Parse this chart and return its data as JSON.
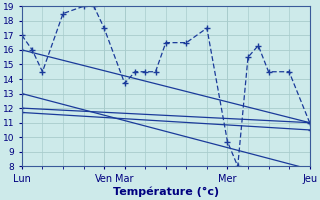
{
  "bg_color": "#cdeaea",
  "grid_color": "#a8cccc",
  "line_color": "#1a3a9a",
  "xlabel": "Température (°c)",
  "ytick_min": 8,
  "ytick_max": 19,
  "day_labels": [
    "Lun",
    "Ven",
    "Mar",
    "Mer",
    "Jeu"
  ],
  "day_x": [
    0,
    8,
    10,
    20,
    28
  ],
  "xlim": [
    0,
    28
  ],
  "series_dashed": {
    "x": [
      0,
      1,
      2,
      4,
      6,
      7,
      8,
      10,
      11,
      12,
      13,
      14,
      16,
      18,
      20,
      21,
      22,
      23,
      24,
      26,
      28
    ],
    "y": [
      17,
      16,
      14.5,
      18.5,
      19,
      19,
      17.5,
      13.7,
      14.5,
      14.5,
      14.5,
      16.5,
      16.5,
      17.5,
      9.7,
      8.0,
      15.5,
      16.3,
      14.5,
      14.5,
      11.0
    ]
  },
  "series_lines": [
    {
      "x": [
        0,
        28
      ],
      "y": [
        16.0,
        11.0
      ],
      "marker": true
    },
    {
      "x": [
        0,
        28
      ],
      "y": [
        13.0,
        7.8
      ],
      "marker": true
    },
    {
      "x": [
        0,
        28
      ],
      "y": [
        12.0,
        11.0
      ],
      "marker": true
    },
    {
      "x": [
        0,
        28
      ],
      "y": [
        11.7,
        10.5
      ],
      "marker": true
    }
  ]
}
